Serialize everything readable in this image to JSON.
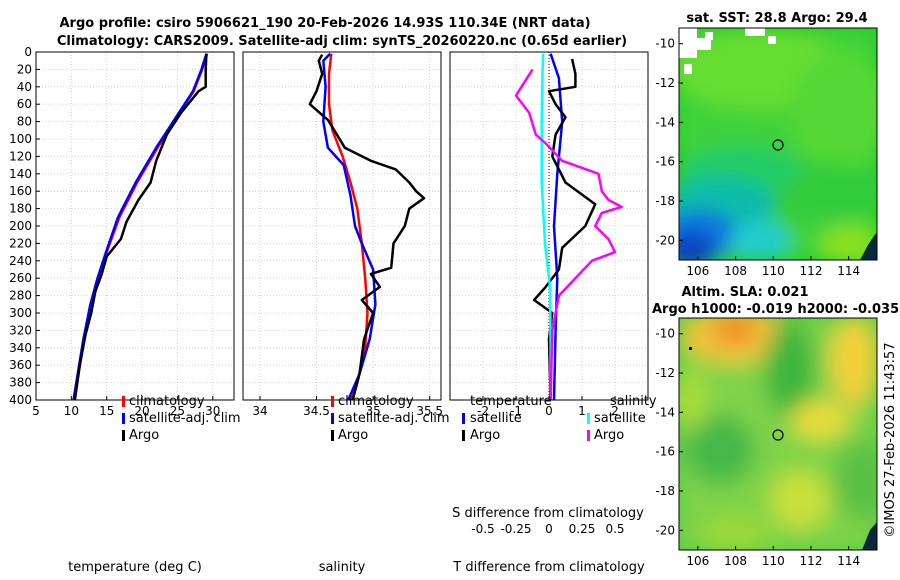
{
  "header": {
    "line1": "Argo profile: csiro 5906621_190 20-Feb-2026 14.93S 110.34E (NRT data)",
    "line2": "Climatology: CARS2009. Satellite-adj clim: synTS_20260220.nc (0.65d earlier)"
  },
  "watermark": "©IMOS 27-Feb-2026 11:43:57",
  "chart_data": [
    {
      "type": "line",
      "name": "temperature",
      "xlabel": "temperature (deg C)",
      "xlim": [
        5,
        33
      ],
      "ylim": [
        400,
        0
      ],
      "xticks": [
        "5",
        "10",
        "15",
        "20",
        "25",
        "30"
      ],
      "yticks": [
        "0",
        "20",
        "40",
        "60",
        "80",
        "100",
        "120",
        "140",
        "160",
        "180",
        "200",
        "220",
        "240",
        "260",
        "280",
        "300",
        "320",
        "340",
        "360",
        "380",
        "400"
      ],
      "legend": [
        "climatology",
        "satellite-adj. clim",
        "Argo"
      ],
      "series": [
        {
          "name": "climatology",
          "color": "#ff0000",
          "points": [
            [
              29.2,
              2
            ],
            [
              28.5,
              20
            ],
            [
              27.3,
              45
            ],
            [
              24.5,
              80
            ],
            [
              22.2,
              110
            ],
            [
              19.3,
              150
            ],
            [
              16.8,
              190
            ],
            [
              15.0,
              230
            ],
            [
              13.8,
              260
            ],
            [
              12.8,
              290
            ],
            [
              11.8,
              330
            ],
            [
              11.0,
              370
            ],
            [
              10.4,
              400
            ]
          ]
        },
        {
          "name": "satellite-adj. clim",
          "color": "#0000ff",
          "points": [
            [
              29.1,
              2
            ],
            [
              28.4,
              20
            ],
            [
              27.2,
              45
            ],
            [
              24.4,
              80
            ],
            [
              22.0,
              110
            ],
            [
              19.1,
              150
            ],
            [
              16.6,
              190
            ],
            [
              14.9,
              230
            ],
            [
              13.7,
              260
            ],
            [
              12.7,
              290
            ],
            [
              11.7,
              330
            ],
            [
              10.9,
              370
            ],
            [
              10.3,
              400
            ]
          ]
        },
        {
          "name": "Argo",
          "color": "#000000",
          "points": [
            [
              29.1,
              2
            ],
            [
              29.0,
              20
            ],
            [
              29.0,
              40
            ],
            [
              28.0,
              45
            ],
            [
              25.5,
              70
            ],
            [
              23.5,
              95
            ],
            [
              22.0,
              125
            ],
            [
              21.2,
              150
            ],
            [
              19.5,
              170
            ],
            [
              17.8,
              195
            ],
            [
              17.0,
              215
            ],
            [
              15.0,
              235
            ],
            [
              14.3,
              255
            ],
            [
              13.4,
              275
            ],
            [
              12.8,
              300
            ],
            [
              12.0,
              325
            ],
            [
              11.2,
              360
            ],
            [
              10.5,
              400
            ]
          ]
        }
      ]
    },
    {
      "type": "line",
      "name": "salinity",
      "xlabel": "salinity",
      "xlim": [
        33.85,
        35.6
      ],
      "ylim": [
        400,
        0
      ],
      "xticks": [
        "34",
        "34.5",
        "35",
        "35.5"
      ],
      "legend": [
        "climatology",
        "satellite-adj. clim",
        "Argo"
      ],
      "series": [
        {
          "name": "climatology",
          "color": "#ff0000",
          "points": [
            [
              34.63,
              2
            ],
            [
              34.61,
              25
            ],
            [
              34.61,
              60
            ],
            [
              34.64,
              90
            ],
            [
              34.73,
              120
            ],
            [
              34.8,
              150
            ],
            [
              34.86,
              180
            ],
            [
              34.9,
              220
            ],
            [
              34.93,
              260
            ],
            [
              34.95,
              300
            ],
            [
              34.93,
              340
            ],
            [
              34.86,
              380
            ],
            [
              34.8,
              400
            ]
          ]
        },
        {
          "name": "satellite-adj. clim",
          "color": "#0000ff",
          "points": [
            [
              34.62,
              2
            ],
            [
              34.56,
              10
            ],
            [
              34.58,
              40
            ],
            [
              34.56,
              80
            ],
            [
              34.6,
              110
            ],
            [
              34.74,
              130
            ],
            [
              34.8,
              165
            ],
            [
              34.84,
              200
            ],
            [
              34.9,
              220
            ],
            [
              35.0,
              250
            ],
            [
              35.02,
              290
            ],
            [
              34.97,
              330
            ],
            [
              34.88,
              370
            ],
            [
              34.78,
              400
            ]
          ]
        },
        {
          "name": "Argo",
          "color": "#000000",
          "points": [
            [
              34.55,
              3
            ],
            [
              34.52,
              10
            ],
            [
              34.55,
              25
            ],
            [
              34.5,
              45
            ],
            [
              34.44,
              60
            ],
            [
              34.6,
              78
            ],
            [
              34.68,
              95
            ],
            [
              34.75,
              110
            ],
            [
              34.98,
              125
            ],
            [
              35.2,
              135
            ],
            [
              35.32,
              150
            ],
            [
              35.38,
              160
            ],
            [
              35.45,
              168
            ],
            [
              35.32,
              180
            ],
            [
              35.28,
              200
            ],
            [
              35.18,
              220
            ],
            [
              35.16,
              248
            ],
            [
              34.98,
              255
            ],
            [
              35.06,
              270
            ],
            [
              34.9,
              285
            ],
            [
              35.0,
              300
            ],
            [
              34.92,
              330
            ],
            [
              34.88,
              370
            ],
            [
              34.82,
              400
            ]
          ]
        }
      ]
    },
    {
      "type": "line",
      "name": "difference",
      "xlabel": "T difference from climatology",
      "xlabel2": "S difference from climatology",
      "xlim": [
        -3,
        3
      ],
      "ylim": [
        400,
        0
      ],
      "xticks": [
        "-2",
        "-1",
        "0",
        "1",
        "2"
      ],
      "xticks2": [
        "-0.5",
        "-0.25",
        "0",
        "0.25",
        "0.5"
      ],
      "legend": {
        "temperature": "temperature",
        "salinity": "salinity",
        "entries": [
          "satellite",
          "Argo",
          "satellite",
          "Argo"
        ]
      },
      "series": [
        {
          "name": "T satellite",
          "color": "#0000ff",
          "points": [
            [
              0.05,
              2
            ],
            [
              0.3,
              30
            ],
            [
              0.4,
              80
            ],
            [
              0.25,
              140
            ],
            [
              0.15,
              200
            ],
            [
              0.25,
              260
            ],
            [
              0.2,
              320
            ],
            [
              0.15,
              400
            ]
          ]
        },
        {
          "name": "T Argo",
          "color": "#000000",
          "points": [
            [
              0.7,
              8
            ],
            [
              0.8,
              25
            ],
            [
              0.8,
              40
            ],
            [
              0.0,
              45
            ],
            [
              0.2,
              60
            ],
            [
              0.5,
              75
            ],
            [
              0.2,
              95
            ],
            [
              0.1,
              120
            ],
            [
              0.5,
              150
            ],
            [
              1.4,
              175
            ],
            [
              1.1,
              200
            ],
            [
              0.4,
              225
            ],
            [
              0.3,
              250
            ],
            [
              -0.1,
              270
            ],
            [
              -0.45,
              285
            ],
            [
              0.1,
              300
            ],
            [
              0.0,
              330
            ],
            [
              0.05,
              400
            ]
          ]
        },
        {
          "name": "S satellite",
          "color": "#00ffff",
          "points": [
            [
              -0.18,
              2
            ],
            [
              -0.2,
              30
            ],
            [
              -0.22,
              80
            ],
            [
              -0.22,
              150
            ],
            [
              -0.12,
              220
            ],
            [
              0.03,
              270
            ],
            [
              0.05,
              340
            ],
            [
              0.05,
              400
            ]
          ]
        },
        {
          "name": "S Argo",
          "color": "#ff00ff",
          "points": [
            [
              -0.5,
              20
            ],
            [
              -1.0,
              50
            ],
            [
              -0.6,
              70
            ],
            [
              -0.4,
              95
            ],
            [
              -0.1,
              105
            ],
            [
              0.4,
              125
            ],
            [
              1.5,
              140
            ],
            [
              1.6,
              160
            ],
            [
              1.8,
              170
            ],
            [
              2.2,
              178
            ],
            [
              1.6,
              185
            ],
            [
              1.4,
              200
            ],
            [
              1.8,
              215
            ],
            [
              2.0,
              230
            ],
            [
              1.3,
              240
            ],
            [
              0.8,
              260
            ],
            [
              0.3,
              280
            ],
            [
              0.1,
              320
            ],
            [
              0.05,
              400
            ]
          ]
        }
      ]
    },
    {
      "type": "heatmap",
      "name": "sst-map",
      "title": "sat. SST: 28.8 Argo: 29.4",
      "xticks": [
        "106",
        "108",
        "110",
        "112",
        "114"
      ],
      "yticks": [
        "-10",
        "-12",
        "-14",
        "-16",
        "-18",
        "-20"
      ],
      "marker": {
        "lon": 110.34,
        "lat": -14.93
      }
    },
    {
      "type": "heatmap",
      "name": "sla-map",
      "title": "Altim. SLA: 0.021",
      "subtitle": "Argo h1000: -0.019 h2000: -0.035",
      "xticks": [
        "106",
        "108",
        "110",
        "112",
        "114"
      ],
      "yticks": [
        "-10",
        "-12",
        "-14",
        "-16",
        "-18",
        "-20"
      ],
      "marker": {
        "lon": 110.34,
        "lat": -14.93
      }
    }
  ]
}
